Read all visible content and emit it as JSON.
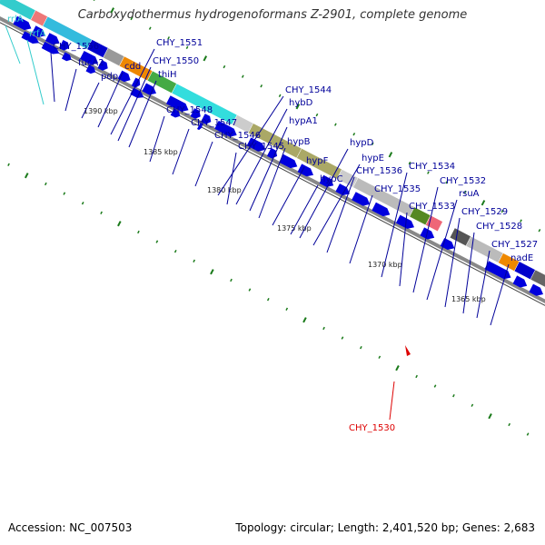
{
  "title": "Carboxydothermus hydrogenoformans Z-2901, complete genome",
  "footer": {
    "accession": "Accession: NC_007503",
    "summary": "Topology: circular; Length: 2,401,520 bp; Genes: 2,683"
  },
  "colors": {
    "forward_arrow": "#0000dd",
    "label_gene": "#000099",
    "label_rna": "#33cccc",
    "label_highlight": "#dd0000",
    "tick": "#1a7a1a",
    "backbone": "#888888"
  },
  "kbp_ticks": [
    "1390 kbp",
    "1385 kbp",
    "1380 kbp",
    "1375 kbp",
    "1370 kbp",
    "1365 kbp"
  ],
  "genes": [
    {
      "label": "rrlA",
      "type": "rna"
    },
    {
      "label": "rrfA",
      "type": "rna"
    },
    {
      "label": "CHY_1556",
      "type": "gene"
    },
    {
      "label": "fucA2",
      "type": "gene"
    },
    {
      "label": "pdp",
      "type": "gene"
    },
    {
      "label": "cdd",
      "type": "gene"
    },
    {
      "label": "CHY_1551",
      "type": "gene"
    },
    {
      "label": "CHY_1550",
      "type": "gene"
    },
    {
      "label": "thiH",
      "type": "gene"
    },
    {
      "label": "CHY_1548",
      "type": "gene"
    },
    {
      "label": "CHY_1547",
      "type": "gene"
    },
    {
      "label": "CHY_1546",
      "type": "gene"
    },
    {
      "label": "CHY_1545",
      "type": "gene"
    },
    {
      "label": "CHY_1544",
      "type": "gene"
    },
    {
      "label": "hybD",
      "type": "gene"
    },
    {
      "label": "hypA1",
      "type": "gene"
    },
    {
      "label": "hypB",
      "type": "gene"
    },
    {
      "label": "hypF",
      "type": "gene"
    },
    {
      "label": "hypC",
      "type": "gene"
    },
    {
      "label": "hypD",
      "type": "gene"
    },
    {
      "label": "hypE",
      "type": "gene"
    },
    {
      "label": "CHY_1536",
      "type": "gene"
    },
    {
      "label": "CHY_1535",
      "type": "gene"
    },
    {
      "label": "CHY_1534",
      "type": "gene"
    },
    {
      "label": "CHY_1533",
      "type": "gene"
    },
    {
      "label": "CHY_1532",
      "type": "gene"
    },
    {
      "label": "rsuA",
      "type": "gene"
    },
    {
      "label": "CHY_1529",
      "type": "gene"
    },
    {
      "label": "CHY_1528",
      "type": "gene"
    },
    {
      "label": "CHY_1527",
      "type": "gene"
    },
    {
      "label": "nadE",
      "type": "gene"
    },
    {
      "label": "CHY_1530",
      "type": "highlight"
    }
  ]
}
